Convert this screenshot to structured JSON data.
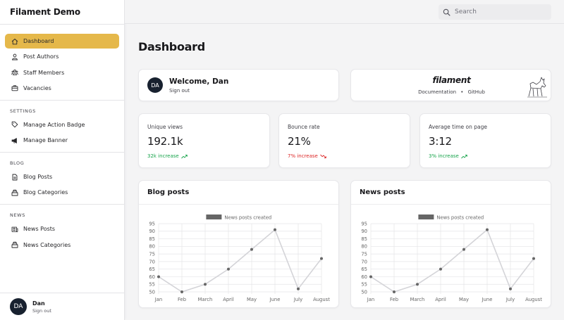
{
  "brand": "Filament Demo",
  "sidebar": {
    "items": [
      {
        "label": "Dashboard",
        "icon": "home-icon",
        "active": true
      },
      {
        "label": "Post Authors",
        "icon": "users-icon"
      },
      {
        "label": "Staff Members",
        "icon": "user-group-icon"
      },
      {
        "label": "Vacancies",
        "icon": "briefcase-icon"
      }
    ],
    "groups": [
      {
        "heading": "SETTINGS",
        "items": [
          {
            "label": "Manage Action Badge",
            "icon": "tag-icon"
          },
          {
            "label": "Manage Banner",
            "icon": "megaphone-icon"
          }
        ]
      },
      {
        "heading": "BLOG",
        "items": [
          {
            "label": "Blog Posts",
            "icon": "document-icon"
          },
          {
            "label": "Blog Categories",
            "icon": "inbox-stack-icon"
          }
        ]
      },
      {
        "heading": "NEWS",
        "items": [
          {
            "label": "News Posts",
            "icon": "newspaper-icon"
          },
          {
            "label": "News Categories",
            "icon": "inbox-stack-icon"
          }
        ]
      }
    ],
    "user": {
      "initials": "DA",
      "name": "Dan",
      "sub": "Sign out"
    }
  },
  "search": {
    "placeholder": "Search"
  },
  "page_title": "Dashboard",
  "welcome": {
    "initials": "DA",
    "title": "Welcome, Dan",
    "signout": "Sign out"
  },
  "filament": {
    "logo": "filament",
    "doc": "Documentation",
    "dot": "•",
    "github": "GitHub"
  },
  "stats": [
    {
      "label": "Unique views",
      "value": "192.1k",
      "desc": "32k increase",
      "trend": "up"
    },
    {
      "label": "Bounce rate",
      "value": "21%",
      "desc": "7% increase",
      "trend": "down"
    },
    {
      "label": "Average time on page",
      "value": "3:12",
      "desc": "3% increase",
      "trend": "up"
    }
  ],
  "chart_data": [
    {
      "type": "line",
      "title": "Blog posts",
      "categories": [
        "Jan",
        "Feb",
        "March",
        "April",
        "May",
        "June",
        "July",
        "August"
      ],
      "series": [
        {
          "name": "News posts created",
          "values": [
            60,
            50,
            55,
            65,
            78,
            91,
            52,
            72
          ]
        }
      ],
      "ylim": [
        50,
        95
      ],
      "yticks": [
        50,
        55,
        60,
        65,
        70,
        75,
        80,
        85,
        90,
        95
      ],
      "legend": "top",
      "grid": true,
      "line_color": "#d4d4d8",
      "point_color": "#666666",
      "legend_color": "#666666"
    },
    {
      "type": "line",
      "title": "News posts",
      "categories": [
        "Jan",
        "Feb",
        "March",
        "April",
        "May",
        "June",
        "July",
        "August"
      ],
      "series": [
        {
          "name": "News posts created",
          "values": [
            60,
            50,
            55,
            65,
            78,
            91,
            52,
            72
          ]
        }
      ],
      "ylim": [
        50,
        95
      ],
      "yticks": [
        50,
        55,
        60,
        65,
        70,
        75,
        80,
        85,
        90,
        95
      ],
      "legend": "top",
      "grid": true,
      "line_color": "#d4d4d8",
      "point_color": "#666666",
      "legend_color": "#666666"
    }
  ],
  "colors": {
    "accent": "#e5b84a",
    "avatar_bg": "#18212f",
    "increase": "#16a34a",
    "decrease": "#dc2626"
  }
}
